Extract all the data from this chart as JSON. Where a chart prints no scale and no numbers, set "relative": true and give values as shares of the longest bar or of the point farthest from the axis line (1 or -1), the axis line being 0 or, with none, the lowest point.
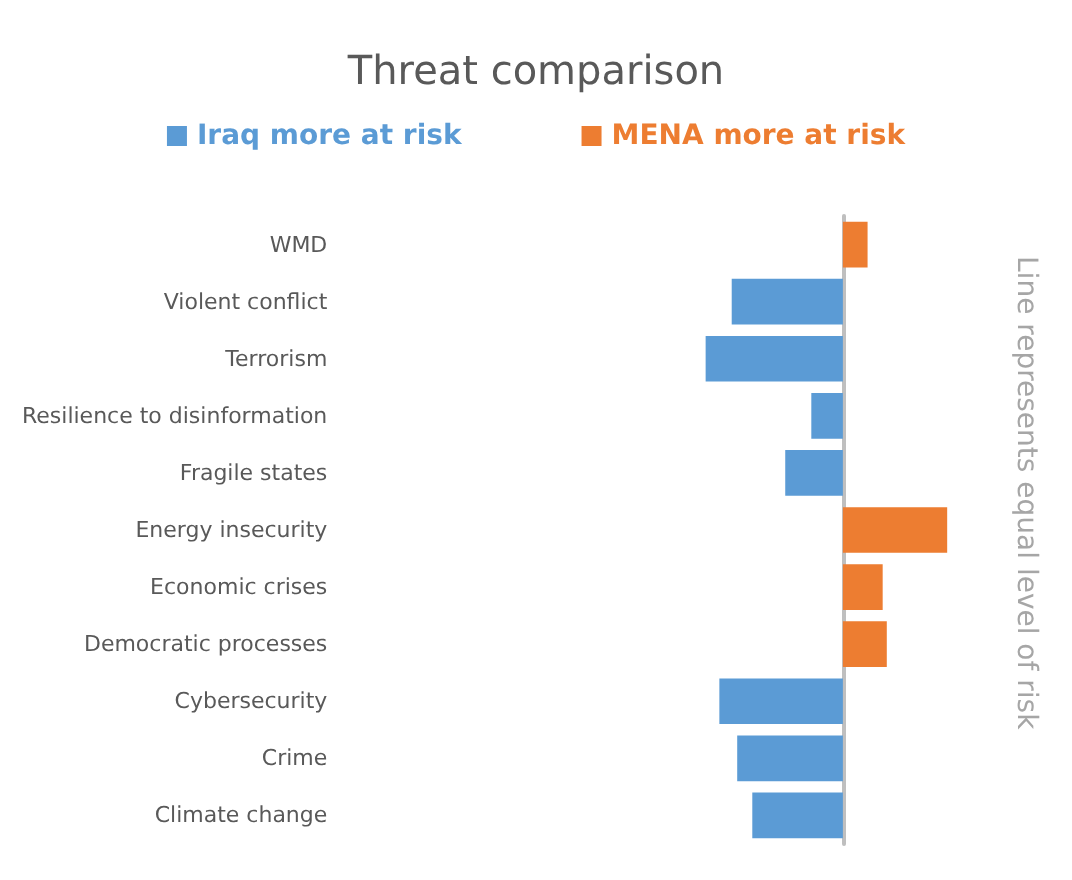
{
  "chart_data": {
    "type": "bar",
    "orientation": "horizontal",
    "relative": true,
    "title": "Threat comparison",
    "categories": [
      "WMD",
      "Violent conflict",
      "Terrorism",
      "Resilience to disinformation",
      "Fragile states",
      "Energy insecurity",
      "Economic crises",
      "Democratic processes",
      "Cybersecurity",
      "Crime",
      "Climate change"
    ],
    "series": [
      {
        "name": "Iraq more at risk",
        "color": "#5b9bd5",
        "values": [
          null,
          -0.81,
          -1,
          -0.23,
          -0.42,
          null,
          null,
          null,
          -0.9,
          -0.77,
          -0.66
        ]
      },
      {
        "name": "MENA more at risk",
        "color": "#ed7d31",
        "values": [
          0.18,
          null,
          null,
          null,
          null,
          0.76,
          0.29,
          0.32,
          null,
          null,
          null
        ]
      }
    ],
    "legend": "top",
    "annotations": [
      "Line represents equal level of risk"
    ]
  }
}
